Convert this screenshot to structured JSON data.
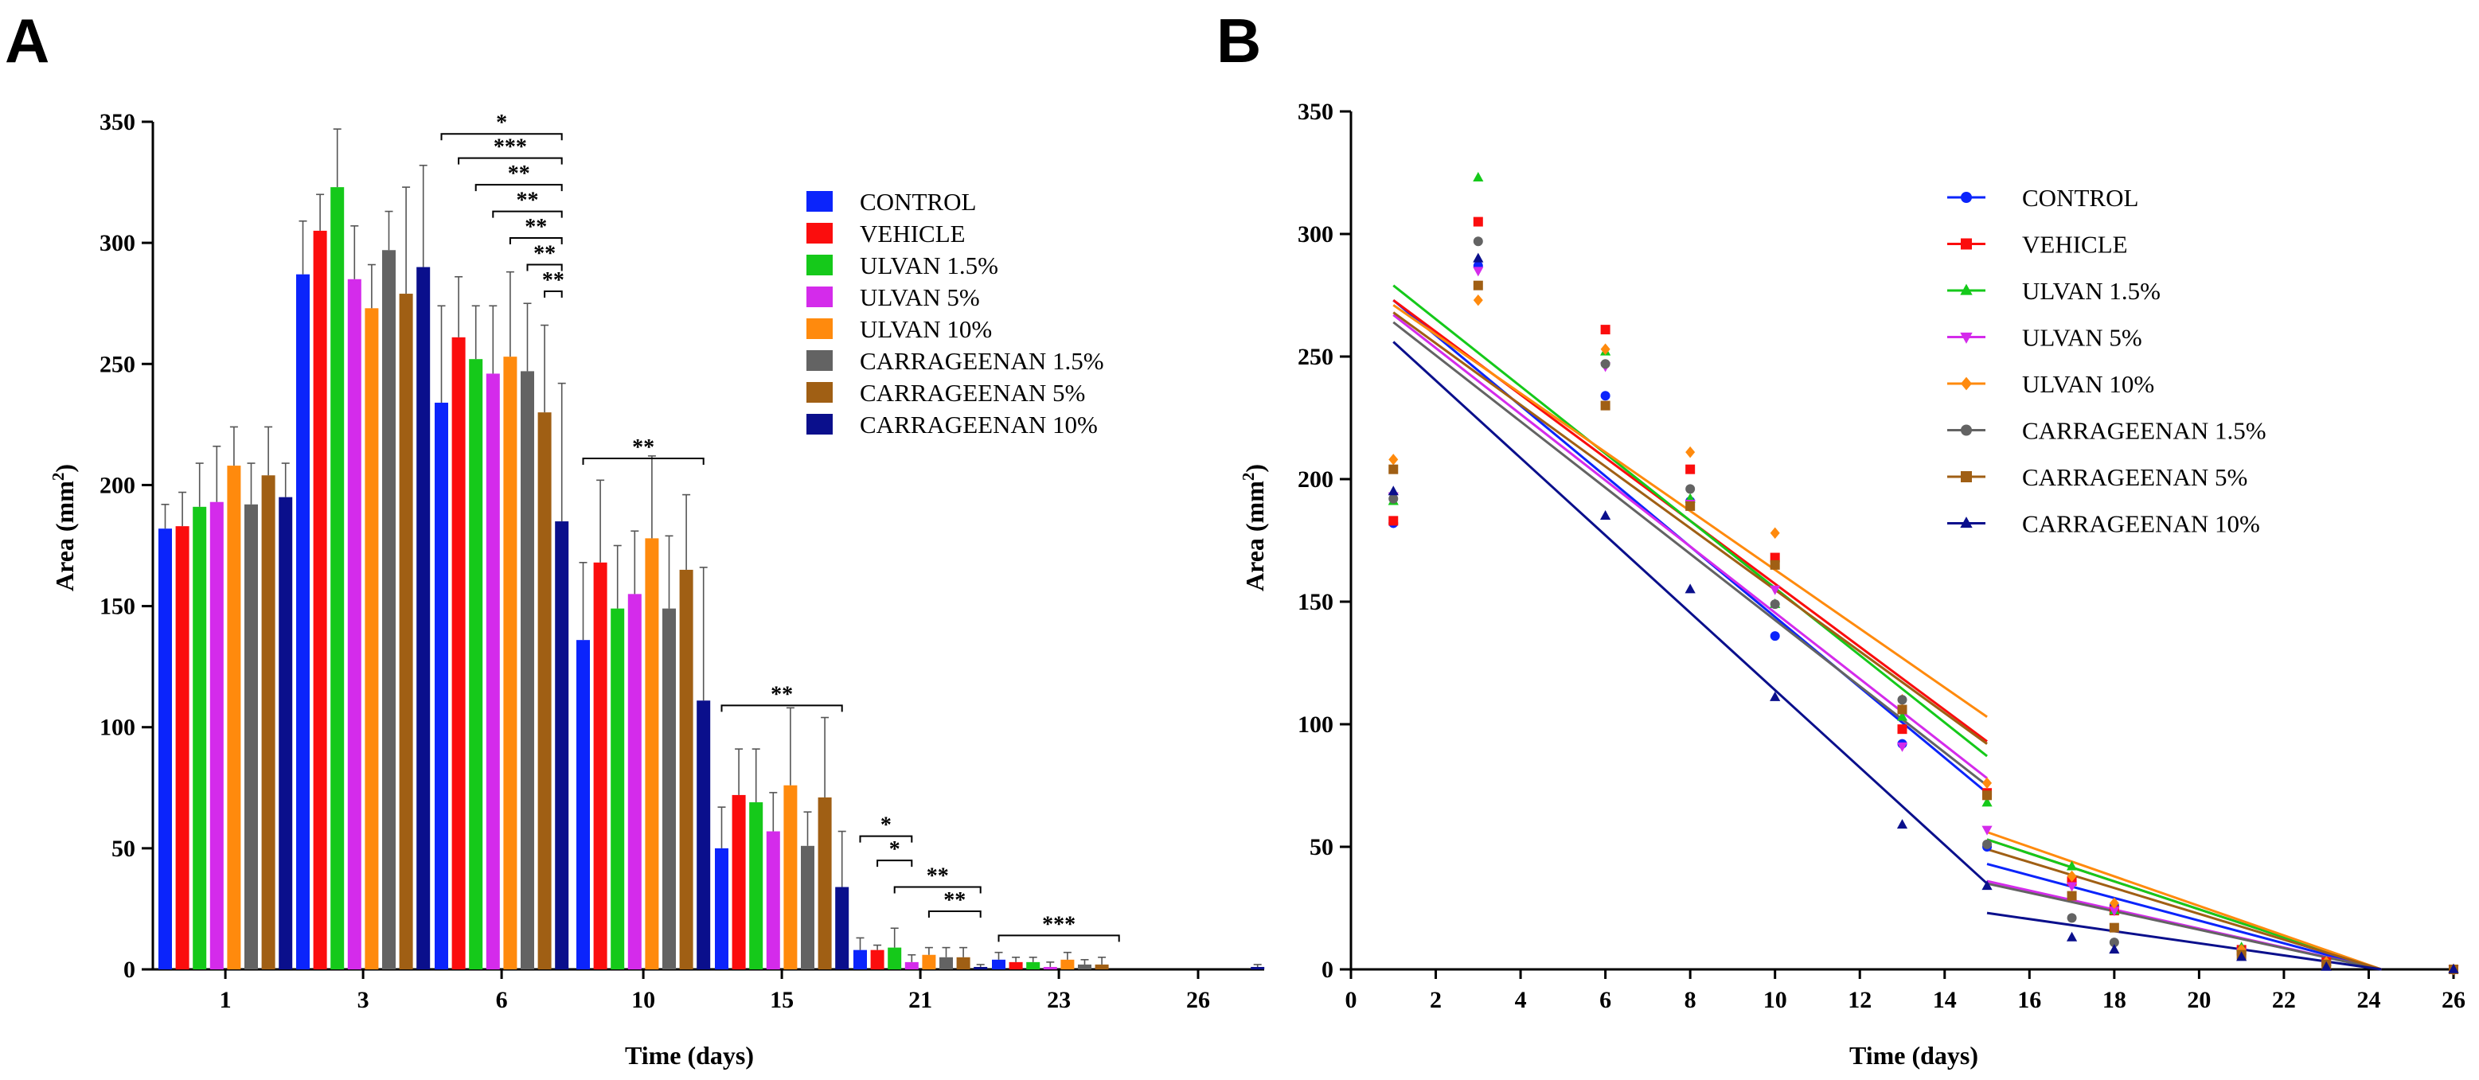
{
  "series_meta": [
    {
      "name": "CONTROL",
      "color": "#0B24FB",
      "marker": "circle"
    },
    {
      "name": "VEHICLE",
      "color": "#FB0D0D",
      "marker": "square"
    },
    {
      "name": "ULVAN 1.5%",
      "color": "#15C91A",
      "marker": "triangle-up"
    },
    {
      "name": "ULVAN 5%",
      "color": "#D42BEB",
      "marker": "triangle-down"
    },
    {
      "name": "ULVAN 10%",
      "color": "#FF8A0D",
      "marker": "diamond"
    },
    {
      "name": "CARRAGEENAN 1.5%",
      "color": "#636363",
      "marker": "circle"
    },
    {
      "name": "CARRAGEENAN 5%",
      "color": "#A05F14",
      "marker": "square"
    },
    {
      "name": "CARRAGEENAN 10%",
      "color": "#0A0F8C",
      "marker": "triangle-up"
    }
  ],
  "chart_data": [
    {
      "panel": "A",
      "type": "bar",
      "xlabel": "Time (days)",
      "ylabel": "Area (mm2)",
      "ylim": [
        0,
        350
      ],
      "yticks": [
        0,
        50,
        100,
        150,
        200,
        250,
        300,
        350
      ],
      "categories": [
        "1",
        "3",
        "6",
        "10",
        "15",
        "21",
        "23",
        "26"
      ],
      "legend_position": "top-right",
      "series": [
        {
          "name": "CONTROL",
          "values": [
            182,
            287,
            234,
            136,
            50,
            8,
            4,
            0
          ],
          "errors": [
            10,
            22,
            40,
            32,
            17,
            5,
            3,
            0
          ]
        },
        {
          "name": "VEHICLE",
          "values": [
            183,
            305,
            261,
            168,
            72,
            8,
            3,
            0
          ],
          "errors": [
            14,
            15,
            25,
            34,
            19,
            2,
            2,
            0
          ]
        },
        {
          "name": "ULVAN 1.5%",
          "values": [
            191,
            323,
            252,
            149,
            69,
            9,
            3,
            0
          ],
          "errors": [
            18,
            24,
            22,
            26,
            22,
            8,
            2,
            0
          ]
        },
        {
          "name": "ULVAN 5%",
          "values": [
            193,
            285,
            246,
            155,
            57,
            3,
            1,
            0
          ],
          "errors": [
            23,
            22,
            28,
            26,
            16,
            3,
            2,
            0
          ]
        },
        {
          "name": "ULVAN 10%",
          "values": [
            208,
            273,
            253,
            178,
            76,
            6,
            4,
            0
          ],
          "errors": [
            16,
            18,
            35,
            34,
            32,
            3,
            3,
            0
          ]
        },
        {
          "name": "CARRAGEENAN 1.5%",
          "values": [
            192,
            297,
            247,
            149,
            51,
            5,
            2,
            0
          ],
          "errors": [
            17,
            16,
            28,
            30,
            14,
            4,
            2,
            0
          ]
        },
        {
          "name": "CARRAGEENAN 5%",
          "values": [
            204,
            279,
            230,
            165,
            71,
            5,
            2,
            0
          ],
          "errors": [
            20,
            44,
            36,
            31,
            33,
            4,
            3,
            0
          ]
        },
        {
          "name": "CARRAGEENAN 10%",
          "values": [
            195,
            290,
            185,
            111,
            34,
            1,
            0,
            1
          ],
          "errors": [
            14,
            42,
            57,
            55,
            23,
            1,
            0,
            1
          ]
        }
      ],
      "significance": [
        {
          "label": "*",
          "category": "6",
          "from": 0,
          "to": 7,
          "level": 345
        },
        {
          "label": "***",
          "category": "6",
          "from": 1,
          "to": 7,
          "level": 335
        },
        {
          "label": "**",
          "category": "6",
          "from": 2,
          "to": 7,
          "level": 324
        },
        {
          "label": "**",
          "category": "6",
          "from": 3,
          "to": 7,
          "level": 313
        },
        {
          "label": "**",
          "category": "6",
          "from": 4,
          "to": 7,
          "level": 302
        },
        {
          "label": "**",
          "category": "6",
          "from": 5,
          "to": 7,
          "level": 291
        },
        {
          "label": "**",
          "category": "6",
          "from": 6,
          "to": 7,
          "level": 280
        },
        {
          "label": "**",
          "category": "10",
          "from": 0,
          "to": 7,
          "level": 211
        },
        {
          "label": "**",
          "category": "15",
          "from": 0,
          "to": 7,
          "level": 109
        },
        {
          "label": "*",
          "category": "21",
          "from": 0,
          "to": 3,
          "level": 55
        },
        {
          "label": "*",
          "category": "21",
          "from": 1,
          "to": 3,
          "level": 45
        },
        {
          "label": "**",
          "category": "21",
          "from": 2,
          "to": 7,
          "level": 34
        },
        {
          "label": "**",
          "category": "21",
          "from": 4,
          "to": 7,
          "level": 24
        },
        {
          "label": "***",
          "category": "23",
          "from": 0,
          "to": 7,
          "level": 14
        }
      ]
    },
    {
      "panel": "B",
      "type": "scatter",
      "xlabel": "Time (days)",
      "ylabel": "Area (mm2)",
      "xlim": [
        0,
        26
      ],
      "ylim": [
        0,
        350
      ],
      "xticks": [
        0,
        2,
        4,
        6,
        8,
        10,
        12,
        14,
        16,
        18,
        20,
        22,
        24,
        26
      ],
      "yticks": [
        0,
        50,
        100,
        150,
        200,
        250,
        300,
        350
      ],
      "legend_position": "top-right",
      "x": [
        1,
        3,
        6,
        8,
        10,
        13,
        15,
        17,
        18,
        21,
        23,
        26
      ],
      "series": [
        {
          "name": "CONTROL",
          "y": [
            182,
            287,
            234,
            191,
            136,
            92,
            50,
            36,
            26,
            8,
            3,
            0
          ],
          "fits": [
            {
              "x": [
                1,
                15
              ],
              "y": [
                273,
                72
              ]
            },
            {
              "x": [
                15,
                24.3
              ],
              "y": [
                43,
                0
              ]
            }
          ]
        },
        {
          "name": "VEHICLE",
          "y": [
            183,
            305,
            261,
            204,
            168,
            98,
            72,
            36,
            24,
            8,
            3,
            0
          ],
          "fits": [
            {
              "x": [
                1,
                15
              ],
              "y": [
                273,
                93
              ]
            },
            {
              "x": [
                15,
                24.3
              ],
              "y": [
                53,
                0
              ]
            }
          ]
        },
        {
          "name": "ULVAN 1.5%",
          "y": [
            191,
            323,
            252,
            192,
            149,
            103,
            68,
            42,
            24,
            9,
            3,
            0
          ],
          "fits": [
            {
              "x": [
                1,
                15
              ],
              "y": [
                279,
                87
              ]
            },
            {
              "x": [
                15,
                24.3
              ],
              "y": [
                53,
                0
              ]
            }
          ]
        },
        {
          "name": "ULVAN 5%",
          "y": [
            193,
            285,
            246,
            190,
            155,
            91,
            57,
            34,
            24,
            7,
            2,
            0
          ],
          "fits": [
            {
              "x": [
                1,
                15
              ],
              "y": [
                267,
                78
              ]
            },
            {
              "x": [
                15,
                24.3
              ],
              "y": [
                36,
                0
              ]
            }
          ]
        },
        {
          "name": "ULVAN 10%",
          "y": [
            208,
            273,
            253,
            211,
            178,
            110,
            76,
            38,
            27,
            8,
            3,
            0
          ],
          "fits": [
            {
              "x": [
                1,
                15
              ],
              "y": [
                271,
                103
              ]
            },
            {
              "x": [
                15,
                24.3
              ],
              "y": [
                56,
                0
              ]
            }
          ]
        },
        {
          "name": "CARRAGEENAN 1.5%",
          "y": [
            192,
            297,
            247,
            196,
            149,
            110,
            51,
            21,
            11,
            6,
            2,
            0
          ],
          "fits": [
            {
              "x": [
                1,
                15
              ],
              "y": [
                264,
                75
              ]
            },
            {
              "x": [
                15,
                24.3
              ],
              "y": [
                35,
                0
              ]
            }
          ]
        },
        {
          "name": "CARRAGEENAN 5%",
          "y": [
            204,
            279,
            230,
            189,
            165,
            106,
            71,
            30,
            17,
            6,
            2,
            0
          ],
          "fits": [
            {
              "x": [
                1,
                15
              ],
              "y": [
                268,
                92
              ]
            },
            {
              "x": [
                15,
                24.3
              ],
              "y": [
                49,
                0
              ]
            }
          ]
        },
        {
          "name": "CARRAGEENAN 10%",
          "y": [
            195,
            290,
            185,
            155,
            111,
            59,
            34,
            13,
            8,
            5,
            1,
            0
          ],
          "fits": [
            {
              "x": [
                1,
                15
              ],
              "y": [
                256,
                35
              ]
            },
            {
              "x": [
                15,
                24.3
              ],
              "y": [
                23,
                0
              ]
            }
          ]
        }
      ]
    }
  ],
  "labels": {
    "panel_a": "A",
    "panel_b": "B",
    "a_xlabel": "Time (days)",
    "a_ylabel_main": "Area (mm",
    "a_ylabel_sup": "2",
    "a_ylabel_end": ")",
    "b_xlabel": "Time (days)",
    "b_ylabel_main": "Area (mm",
    "b_ylabel_sup": "2",
    "b_ylabel_end": ")"
  }
}
